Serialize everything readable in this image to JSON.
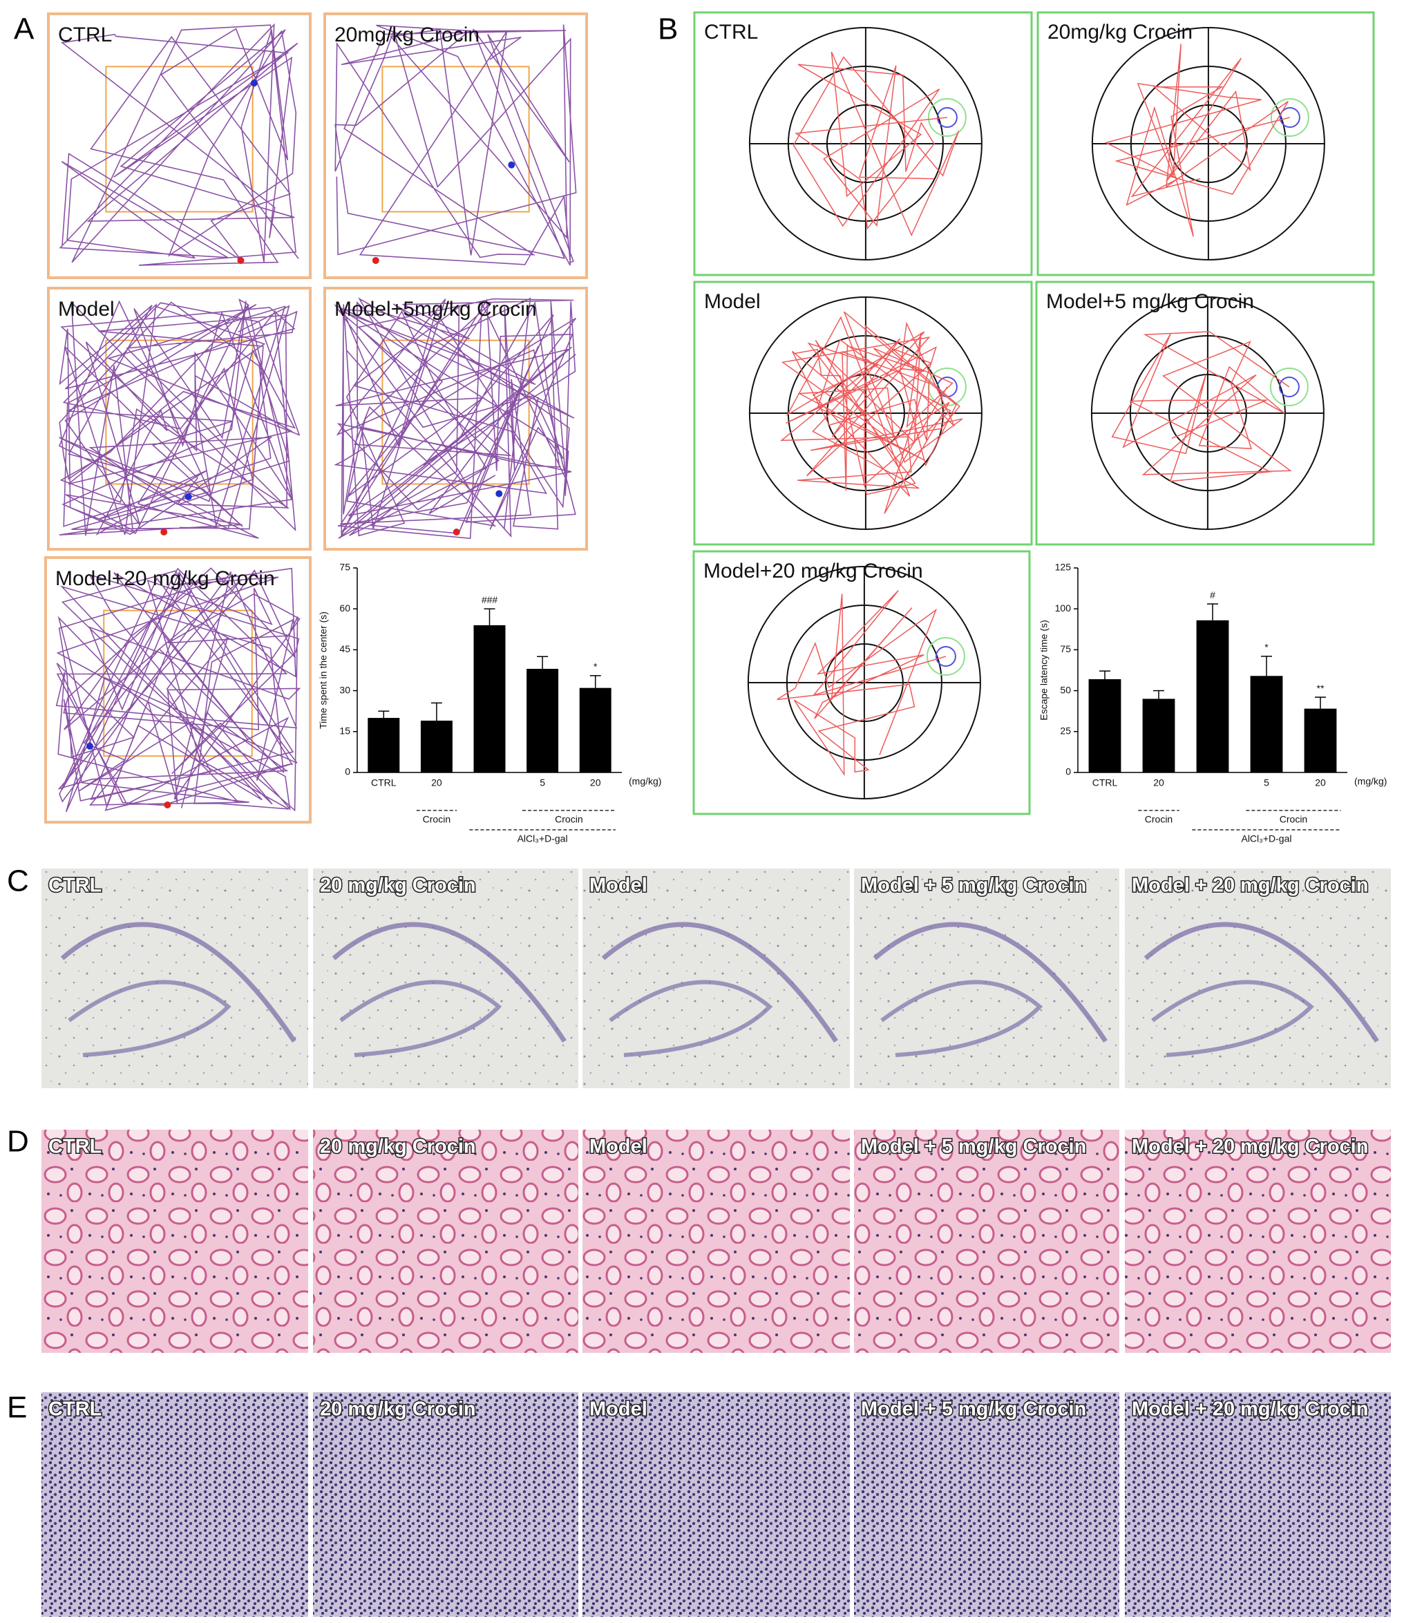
{
  "panel_letters": [
    "A",
    "B",
    "C",
    "D",
    "E"
  ],
  "panel_a": {
    "labels": [
      "CTRL",
      "20mg/kg Crocin",
      "Model",
      "Model+5mg/kg Crocin",
      "Model+20 mg/kg  Crocin"
    ]
  },
  "panel_b": {
    "labels": [
      "CTRL",
      "20mg/kg Crocin",
      "Model",
      "Model+5 mg/kg Crocin",
      "Model+20 mg/kg  Crocin"
    ]
  },
  "panel_c": {
    "labels": [
      "CTRL",
      "20 mg/kg Crocin",
      "Model",
      "Model + 5 mg/kg Crocin",
      "Model + 20 mg/kg Crocin"
    ]
  },
  "panel_d": {
    "labels": [
      "CTRL",
      "20 mg/kg Crocin",
      "Model",
      "Model + 5 mg/kg Crocin",
      "Model + 20 mg/kg Crocin"
    ]
  },
  "panel_e": {
    "labels": [
      "CTRL",
      "20 mg/kg Crocin",
      "Model",
      "Model + 5 mg/kg Crocin",
      "Model + 20 mg/kg Crocin"
    ]
  },
  "chart_data": [
    {
      "type": "bar",
      "y_label": "Time spent in the center (s)",
      "categories": [
        "CTRL",
        "20",
        null,
        "5",
        "20"
      ],
      "values": [
        20,
        19,
        54,
        38,
        31
      ],
      "errors": [
        2.5,
        6.5,
        6,
        4.5,
        4.5
      ],
      "annotations": [
        null,
        null,
        "###",
        null,
        "*"
      ],
      "unit": "(mg/kg)",
      "group_labels": [
        "Crocin",
        "Crocin",
        "AlCl₃+D-gal"
      ],
      "color": "#000000",
      "ylim": [
        0,
        75
      ],
      "yticks": [
        0,
        15,
        30,
        45,
        60,
        75
      ]
    },
    {
      "type": "bar",
      "y_label": "Escape latency time (s)",
      "categories": [
        "CTRL",
        "20",
        null,
        "5",
        "20"
      ],
      "values": [
        57,
        45,
        93,
        59,
        39
      ],
      "errors": [
        5,
        5,
        10,
        12,
        7
      ],
      "annotations": [
        null,
        null,
        "#",
        "*",
        "**"
      ],
      "unit": "(mg/kg)",
      "group_labels": [
        "Crocin",
        "Crocin",
        "AlCl₃+D-gal"
      ],
      "color": "#000000",
      "ylim": [
        0,
        125
      ],
      "yticks": [
        0,
        25,
        50,
        75,
        100,
        125
      ]
    }
  ]
}
